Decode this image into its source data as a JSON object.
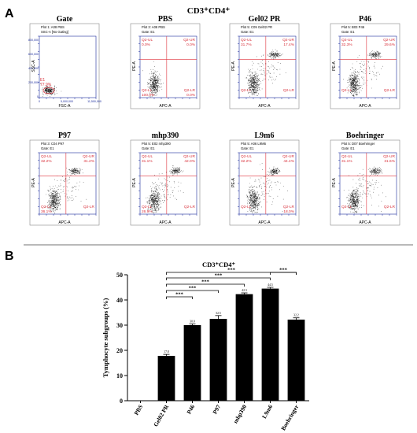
{
  "figure": {
    "panel_a_letter": "A",
    "panel_b_letter": "B",
    "panel_a_title": "CD3⁺CD4⁺"
  },
  "gate_panel": {
    "title": "Gate",
    "plot_header": "Plot 1: A08 PBS",
    "gate_header": "SSC-A   [No Gating]",
    "y_axis": "SSC-A",
    "x_axis": "FSC-A",
    "gate_name": "E1",
    "gate_percent": "77.9%",
    "y_ticks": [
      "800,000",
      "600,000",
      "400,000",
      "200,000",
      "0"
    ],
    "x_ticks": [
      "0",
      "5,000,000",
      "11,500,000"
    ]
  },
  "flow_panels": [
    {
      "title": "PBS",
      "plot": "Plot 3: A08 PBS",
      "gate": "Gate: E1",
      "ul": "Q2-UL",
      "ul_val": "0.0%",
      "ur": "Q2-UR",
      "ur_val": "0.0%",
      "ll": "Q2-LL",
      "ll_val": "100.0%",
      "lr": "Q2-LR",
      "lr_val": "0.0%",
      "pos_pop": false
    },
    {
      "title": "Gel02 PR",
      "plot": "Plot 5: C09 Gel02 PR",
      "gate": "Gate: E1",
      "ul": "Q2-UL",
      "ul_val": "31.7%",
      "ur": "Q2-UR",
      "ur_val": "17.4%",
      "ll": "Q2-LL",
      "ll_val": "",
      "lr": "Q2-LR",
      "lr_val": "",
      "pos_pop": true
    },
    {
      "title": "P46",
      "plot": "Plot 5: B03 P46",
      "gate": "Gate: E1",
      "ul": "Q2-UL",
      "ul_val": "32.3%",
      "ur": "Q2-UR",
      "ur_val": "29.6%",
      "ll": "Q2-LL",
      "ll_val": "",
      "lr": "Q2-LR",
      "lr_val": "",
      "pos_pop": true
    },
    {
      "title": "P97",
      "plot": "Plot 3: C04 P97",
      "gate": "Gate: E1",
      "ul": "Q2-UL",
      "ul_val": "32.2%",
      "ur": "Q2-UR",
      "ur_val": "31.2%",
      "ll": "Q2-LL",
      "ll_val": "36.1%",
      "lr": "Q2-LR",
      "lr_val": "",
      "pos_pop": true
    },
    {
      "title": "mhp390",
      "plot": "Plot 5: E02 mhp390",
      "gate": "Gate: E1",
      "ul": "Q2-UL",
      "ul_val": "31.1%",
      "ur": "Q2-UR",
      "ur_val": "42.0%",
      "ll": "Q2-LL",
      "ll_val": "26.9%",
      "lr": "Q2-LR",
      "lr_val": "",
      "pos_pop": true
    },
    {
      "title": "L9m6",
      "plot": "Plot 5: A06 L9M6",
      "gate": "Gate: E1",
      "ul": "Q2-UL",
      "ul_val": "32.2%",
      "ur": "Q2-UR",
      "ur_val": "44.4%",
      "ll": "Q2-LL",
      "ll_val": "",
      "lr": "Q2-LR",
      "lr_val": "18.0%",
      "pos_pop": true
    },
    {
      "title": "Boehringer",
      "plot": "Plot 5: D07 Boehringer",
      "gate": "Gate: E1",
      "ul": "Q2-UL",
      "ul_val": "31.1%",
      "ur": "Q2-UR",
      "ur_val": "31.6%",
      "ll": "Q2-LL",
      "ll_val": "",
      "lr": "Q2-LR",
      "lr_val": "",
      "pos_pop": true
    }
  ],
  "flow_axis": {
    "x": "APC-A",
    "y": "PE-A"
  },
  "chart_data": {
    "type": "bar",
    "title": "CD3⁺CD4⁺",
    "ylabel": "Tymphocyte subgroups (%)",
    "xlabel": "",
    "categories": [
      "PBS",
      "Gel02 PR",
      "P46",
      "P97",
      "mhp390",
      "L9m6",
      "Boehringer"
    ],
    "values": [
      0,
      17.8,
      30.0,
      32.5,
      42.3,
      44.5,
      32.2
    ],
    "errors": [
      0,
      0.6,
      0.5,
      1.3,
      0.5,
      0.5,
      0.7
    ],
    "data_labels": [
      "",
      "17.8",
      "30.0",
      "32.5",
      "42.3",
      "44.5",
      "32.2"
    ],
    "ylim": [
      0,
      50
    ],
    "yticks": [
      "0",
      "10",
      "20",
      "30",
      "40",
      "50"
    ],
    "significance": [
      {
        "from": "Gel02 PR",
        "to": "P46",
        "label": "***"
      },
      {
        "from": "Gel02 PR",
        "to": "P97",
        "label": "***"
      },
      {
        "from": "Gel02 PR",
        "to": "mhp390",
        "label": "***"
      },
      {
        "from": "Gel02 PR",
        "to": "L9m6",
        "label": "***"
      },
      {
        "from": "Gel02 PR",
        "to": "Boehringer",
        "label": "***"
      },
      {
        "from": "L9m6",
        "to": "Boehringer",
        "label": "***"
      }
    ],
    "colors": {
      "bar": "#000000",
      "flow_frame": "#1a2b9c",
      "quadrant": "#e0303a",
      "quadrant_text": "#d8303a"
    }
  }
}
